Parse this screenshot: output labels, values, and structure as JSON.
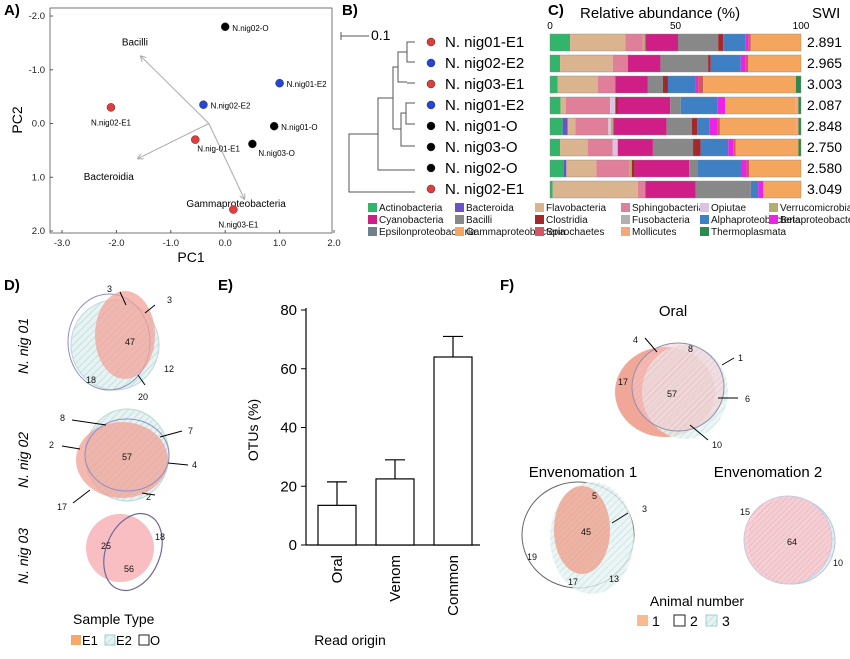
{
  "panels": {
    "a": "A)",
    "b": "B)",
    "c": "C)",
    "d": "D)",
    "e": "E)",
    "f": "F)"
  },
  "panelA": {
    "xlabel": "PC1",
    "ylabel": "PC2",
    "xticks": [
      "-3.0",
      "-2.0",
      "-1.0",
      "0.0",
      "1.0",
      "2.0"
    ],
    "yticks": [
      "-2.0",
      "-1.0",
      "0.0",
      "1.0",
      "2.0"
    ],
    "arrows": [
      "Bacilli",
      "Bacteroidia",
      "Gammaproteobacteria"
    ],
    "colors": {
      "E1": "#e23c3c",
      "E2": "#2346d8",
      "O": "#000000"
    }
  },
  "chart_data": [
    {
      "type": "scatter",
      "title": "",
      "xlabel": "PC1",
      "ylabel": "PC2",
      "xlim": [
        -3.0,
        2.0
      ],
      "ylim": [
        2.0,
        -2.0
      ],
      "y_axis": "inverted",
      "points": [
        {
          "label": "N.nig02-O",
          "x": 0.0,
          "y": -1.8,
          "group": "O"
        },
        {
          "label": "N.nig01-E2",
          "x": 1.0,
          "y": -0.75,
          "group": "E2"
        },
        {
          "label": "N.nig02-E1",
          "x": -2.1,
          "y": -0.3,
          "group": "E1"
        },
        {
          "label": "N.nig02-E2",
          "x": -0.4,
          "y": -0.35,
          "group": "E2"
        },
        {
          "label": "N.nig01-O",
          "x": 0.9,
          "y": 0.05,
          "group": "O"
        },
        {
          "label": "N.nig-01-E1",
          "x": -0.55,
          "y": 0.3,
          "group": "E1"
        },
        {
          "label": "N.nig03-O",
          "x": 0.5,
          "y": 0.38,
          "group": "O"
        },
        {
          "label": "N.nig03-E1",
          "x": 0.15,
          "y": 1.6,
          "group": "E1"
        }
      ]
    },
    {
      "type": "bar",
      "stacked": true,
      "orientation": "horizontal",
      "title": "Relative abundance (%)",
      "xticks": [
        "0",
        "50",
        "100"
      ],
      "swi_header": "SWI",
      "samples": [
        {
          "name": "N. nig01-E1",
          "swi": "2.891",
          "group": "E1",
          "values": [
            8,
            0,
            22,
            7,
            0,
            1,
            0,
            13,
            0,
            16,
            2,
            9,
            1,
            0,
            1,
            20,
            0,
            0,
            0
          ]
        },
        {
          "name": "N. nig02-E2",
          "swi": "2.965",
          "group": "E2",
          "values": [
            4,
            0,
            21,
            6,
            0,
            0,
            0,
            13,
            0,
            19,
            1,
            12,
            2,
            0,
            1,
            21,
            0,
            0,
            0
          ]
        },
        {
          "name": "N. nig03-E1",
          "swi": "3.003",
          "group": "E1",
          "values": [
            3,
            0,
            16,
            7,
            0,
            0,
            0,
            13,
            0,
            6,
            2,
            11,
            1,
            0,
            2,
            37,
            0,
            0,
            2
          ]
        },
        {
          "name": "N. nig01-E2",
          "swi": "2.087",
          "group": "E2",
          "values": [
            4,
            0,
            2,
            17,
            2,
            0,
            1,
            20,
            0,
            4,
            0,
            14,
            3,
            0,
            0,
            27,
            1,
            0,
            1
          ]
        },
        {
          "name": "N. nig01-O",
          "swi": "2.848",
          "group": "O",
          "values": [
            5,
            2,
            3,
            13,
            1,
            1,
            0,
            21,
            0,
            10,
            2,
            5,
            3,
            0,
            1,
            30,
            1,
            0,
            1
          ]
        },
        {
          "name": "N. nig03-O",
          "swi": "2.750",
          "group": "O",
          "values": [
            4,
            0,
            11,
            10,
            2,
            0,
            0,
            14,
            0,
            16,
            3,
            11,
            2,
            0,
            1,
            25,
            0,
            0,
            1
          ]
        },
        {
          "name": "N. nig02-O",
          "swi": "2.580",
          "group": "O",
          "values": [
            5,
            1,
            11,
            12,
            0,
            1,
            1,
            20,
            0,
            3,
            0,
            16,
            2,
            0,
            1,
            19,
            0,
            0,
            0
          ]
        },
        {
          "name": "N. nig02-E1",
          "swi": "3.049",
          "group": "E1",
          "values": [
            1,
            0,
            34,
            3,
            0,
            0,
            0,
            20,
            0,
            22,
            0,
            3,
            2,
            0,
            0,
            15,
            0,
            0,
            0
          ]
        }
      ],
      "categories": [
        "Actinobacteria",
        "Bacilli",
        "Bacteroida",
        "Flavobacteria",
        "Fusobacteria",
        "Sphingobacteria",
        "Opiutae",
        "Cyanobacteria",
        "Verrucomicrobiae",
        "Fusobacteria",
        "Clostridia",
        "Alphaproteobacteria",
        "Betaproteobacteria",
        "Epsilonproteobacteria",
        "Spirochaetes",
        "Gammaproteobacteria",
        "Mollicutes",
        "Thermoplasmata",
        "Thermoplasmata"
      ]
    },
    {
      "type": "bar",
      "title": "",
      "categories": [
        "Oral",
        "Venom",
        "Common"
      ],
      "values": [
        13.5,
        22.5,
        64
      ],
      "errors": [
        8,
        6.5,
        7
      ],
      "xlabel": "Read origin",
      "ylabel": "OTUs (%)",
      "ylim": [
        0,
        80
      ],
      "yticks": [
        "0",
        "20",
        "40",
        "60",
        "80"
      ]
    }
  ],
  "legend": [
    {
      "name": "Actinobacteria",
      "color": "#31b56a"
    },
    {
      "name": "Bacteroida",
      "color": "#6a52c8"
    },
    {
      "name": "Flavobacteria",
      "color": "#d9b48f"
    },
    {
      "name": "Sphingobacteria",
      "color": "#e07f9a"
    },
    {
      "name": "Opiutae",
      "color": "#dcc3e3"
    },
    {
      "name": "Verrucomicrobiae",
      "color": "#b5ad70"
    },
    {
      "name": "Cyanobacteria",
      "color": "#cf1f86"
    },
    {
      "name": "Bacilli",
      "color": "#888888"
    },
    {
      "name": "Clostridia",
      "color": "#a3282c"
    },
    {
      "name": "Fusobacteria",
      "color": "#b0b0b0"
    },
    {
      "name": "Alphaproteobacteria",
      "color": "#3f7fc3"
    },
    {
      "name": "Betaproteobacteria",
      "color": "#ee22e6"
    },
    {
      "name": "Epsilonproteobacteria",
      "color": "#6f7f8e"
    },
    {
      "name": "Gammaproteobacteria",
      "color": "#f5a65e"
    },
    {
      "name": "Spirochaetes",
      "color": "#d65563"
    },
    {
      "name": "Mollicutes",
      "color": "#f6a77a"
    },
    {
      "name": "Thermoplasmata",
      "color": "#2b8a4d"
    }
  ],
  "barSeg": [
    "Actinobacteria",
    "Bacteroida",
    "Flavobacteria",
    "Sphingobacteria",
    "Opiutae",
    "Verrucomicrobiae",
    "Clostridia",
    "Cyanobacteria",
    "Opiutae",
    "Bacilli",
    "Clostridia",
    "Alphaproteobacteria",
    "Betaproteobacteria",
    "Epsilonproteobacteria",
    "Spirochaetes",
    "Gammaproteobacteria",
    "Mollicutes",
    "Thermoplasmata",
    "Thermoplasmata"
  ],
  "panelB": {
    "scale": "0.1"
  },
  "panelD": {
    "rows": [
      {
        "label": "N. nig 01",
        "numbers": [
          "3",
          "3",
          "47",
          "18",
          "12",
          "20"
        ]
      },
      {
        "label": "N. nig 02",
        "numbers": [
          "8",
          "7",
          "2",
          "57",
          "4",
          "17",
          "2"
        ]
      },
      {
        "label": "N. nig 03",
        "numbers": [
          "25",
          "18",
          "56"
        ]
      }
    ],
    "legend_title": "Sample Type",
    "legend": [
      "E1",
      "E2",
      "O"
    ]
  },
  "panelF": {
    "titles": [
      "Oral",
      "Envenomation 1",
      "Envenomation 2"
    ],
    "oral": [
      "4",
      "8",
      "1",
      "17",
      "57",
      "6",
      "10"
    ],
    "env1": [
      "5",
      "3",
      "45",
      "19",
      "17",
      "13"
    ],
    "env2": [
      "15",
      "64",
      "10"
    ],
    "legend_title": "Animal number",
    "legend": [
      "1",
      "2",
      "3"
    ]
  }
}
